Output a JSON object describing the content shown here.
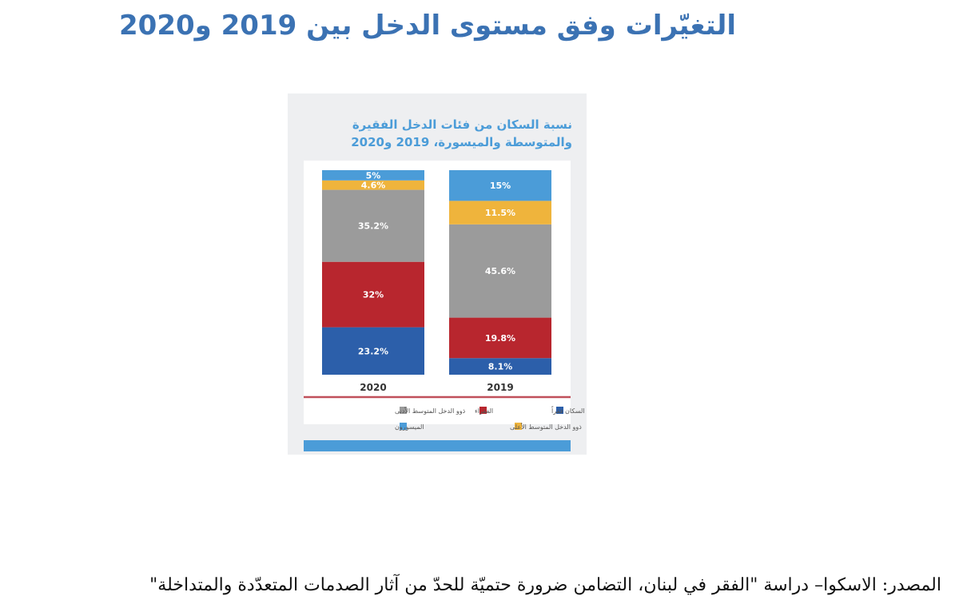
{
  "page": {
    "title": "التغيّرات وفق مستوى الدخل بين 2019 و2020",
    "source": "المصدر: الاسكوا– دراسة \"الفقر في لبنان، التضامن ضرورة حتميّة للحدّ من آثار الصدمات المتعدّدة والمتداخلة\""
  },
  "chart_data": {
    "type": "bar",
    "stacked": true,
    "title_lines": [
      "نسبة السكان من فئات الدخل الفقيرة",
      "والمتوسطة والميسورة، 2019 و2020"
    ],
    "categories": [
      "2020",
      "2019"
    ],
    "unit": "%",
    "series": [
      {
        "name": "أشد السكان فقراً",
        "color": "#2c5faa",
        "values": [
          23.2,
          8.1
        ],
        "labels": [
          "23.2%",
          "8.1%"
        ]
      },
      {
        "name": "الفقراء",
        "color": "#b8262e",
        "values": [
          32,
          19.8
        ],
        "labels": [
          "32%",
          "19.8%"
        ]
      },
      {
        "name": "ذوو الدخل المتوسط الأدنى",
        "color": "#9b9b9b",
        "values": [
          35.2,
          45.6
        ],
        "labels": [
          "35.2%",
          "45.6%"
        ]
      },
      {
        "name": "ذوو الدخل المتوسط الأعلى",
        "color": "#efb43c",
        "values": [
          4.6,
          11.5
        ],
        "labels": [
          "4.6%",
          "11.5%"
        ]
      },
      {
        "name": "الميسورون",
        "color": "#4b9cd8",
        "values": [
          5,
          15
        ],
        "labels": [
          "5%",
          "15%"
        ]
      }
    ],
    "ylim": [
      0,
      100
    ],
    "legend_position": "bottom",
    "colors": {
      "panel_background": "#eeeff1",
      "plot_background": "#ffffff",
      "baseline": "#c0505a",
      "footer_bar": "#4b9cd8",
      "heading": "#4b9cd8"
    }
  }
}
